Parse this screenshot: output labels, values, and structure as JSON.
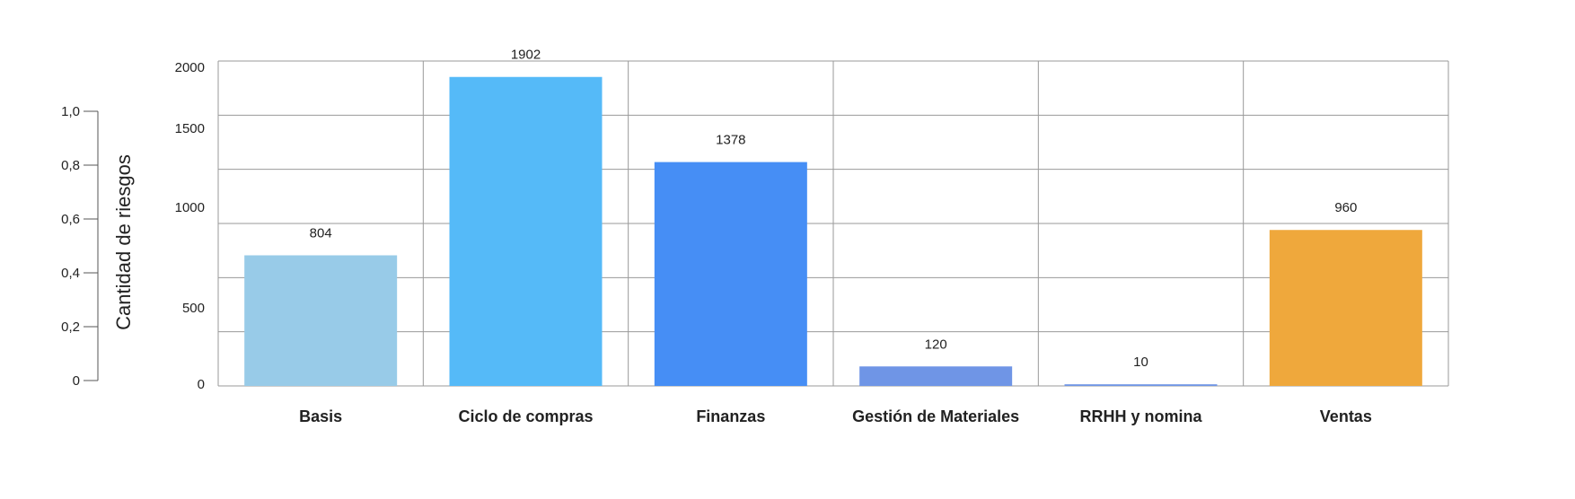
{
  "chart_data": {
    "type": "bar",
    "title": "",
    "xlabel": "",
    "ylabel": "Cantidad de riesgos",
    "categories": [
      "Basis",
      "Ciclo de compras",
      "Finanzas",
      "Gestión de Materiales",
      "RRHH y nomina",
      "Ventas"
    ],
    "values": [
      804,
      1902,
      1378,
      120,
      10,
      960
    ],
    "data_labels": [
      "804",
      "1902",
      "1378",
      "120",
      "10",
      "960"
    ],
    "bar_colors": [
      "#98cbe8",
      "#55baf8",
      "#468ef5",
      "#6f95e6",
      "#6f95e6",
      "#efa83c"
    ],
    "ylim": [
      0,
      2000
    ],
    "y_ticks": [
      {
        "value": 0,
        "label": "0"
      },
      {
        "value": 500,
        "label": "500"
      },
      {
        "value": 1000,
        "label": "1000"
      },
      {
        "value": 1500,
        "label": "1500"
      },
      {
        "value": 2000,
        "label": "2000"
      }
    ],
    "secondary_axis": {
      "range": [
        0,
        1
      ],
      "ticks": [
        {
          "value": 0,
          "label": "0"
        },
        {
          "value": 0.2,
          "label": "0,2"
        },
        {
          "value": 0.4,
          "label": "0,4"
        },
        {
          "value": 0.6,
          "label": "0,6"
        },
        {
          "value": 0.8,
          "label": "0,8"
        },
        {
          "value": 1.0,
          "label": "1,0"
        }
      ]
    },
    "grid": true,
    "legend": "none"
  }
}
